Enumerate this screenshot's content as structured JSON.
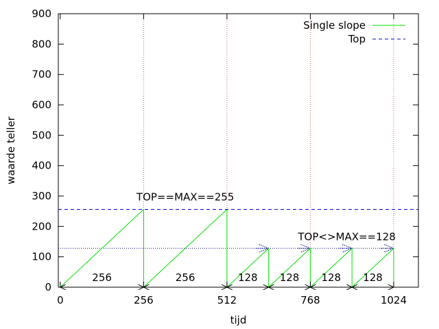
{
  "chart_data": {
    "type": "line",
    "title": "",
    "xlabel": "tijd",
    "ylabel": "waarde teller",
    "xlim": [
      -6,
      1100
    ],
    "ylim": [
      0,
      900
    ],
    "x_ticks": [
      0,
      256,
      512,
      768,
      1024
    ],
    "y_ticks": [
      0,
      100,
      200,
      300,
      400,
      500,
      600,
      700,
      800,
      900
    ],
    "grid": false,
    "legend_position": "top-right",
    "colors": {
      "single_slope": "#00e000",
      "top": "#0000cc",
      "top128": "#000080",
      "vlines": "#e06060"
    },
    "series": [
      {
        "name": "Single slope",
        "points": [
          [
            0,
            0
          ],
          [
            256,
            256
          ],
          [
            256,
            0
          ],
          [
            512,
            256
          ],
          [
            512,
            0
          ],
          [
            640,
            128
          ],
          [
            640,
            0
          ],
          [
            768,
            128
          ],
          [
            768,
            0
          ],
          [
            896,
            128
          ],
          [
            896,
            0
          ],
          [
            1024,
            128
          ],
          [
            1024,
            0
          ]
        ]
      },
      {
        "name": "Top",
        "y": 256
      }
    ],
    "reference_line_y": 128,
    "vertical_lines_x": [
      256,
      512,
      768,
      1024
    ],
    "interval_arrows": [
      {
        "x1": 0,
        "x2": 256,
        "label": "256"
      },
      {
        "x1": 256,
        "x2": 512,
        "label": "256"
      },
      {
        "x1": 512,
        "x2": 640,
        "label": "128"
      },
      {
        "x1": 640,
        "x2": 768,
        "label": "128"
      },
      {
        "x1": 768,
        "x2": 896,
        "label": "128"
      },
      {
        "x1": 896,
        "x2": 1024,
        "label": "128"
      }
    ],
    "annotations": [
      {
        "text": "TOP==MAX==255",
        "x": 384,
        "y": 285
      },
      {
        "text": "TOP<>MAX==128",
        "x": 880,
        "y": 155
      }
    ],
    "top_arrows_x": [
      [
        600,
        640
      ],
      [
        728,
        768
      ],
      [
        856,
        896
      ],
      [
        984,
        1024
      ]
    ]
  }
}
